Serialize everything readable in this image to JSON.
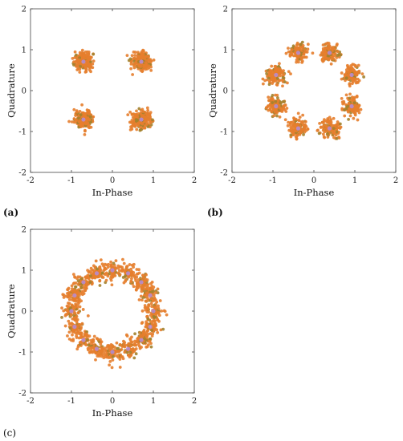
{
  "chart_data": [
    {
      "type": "scatter",
      "panel_label": "(a)",
      "xlabel": "In-Phase",
      "ylabel": "Quadrature",
      "xlim": [
        -2,
        2
      ],
      "ylim": [
        -2,
        2
      ],
      "xticks": [
        -2,
        -1,
        0,
        1,
        2
      ],
      "yticks": [
        -2,
        -1,
        0,
        1,
        2
      ],
      "grid": false,
      "constellation": "QPSK",
      "ideal_points": [
        [
          0.707,
          0.707
        ],
        [
          -0.707,
          0.707
        ],
        [
          -0.707,
          -0.707
        ],
        [
          0.707,
          -0.707
        ]
      ],
      "noise_spread": 0.11,
      "points_per_symbol": 220,
      "colors": {
        "received": "#e57e2e",
        "received_alt": "#a3822e",
        "ideal": "#b48cd8"
      }
    },
    {
      "type": "scatter",
      "panel_label": "(b)",
      "xlabel": "In-Phase",
      "ylabel": "Quadrature",
      "xlim": [
        -2,
        2
      ],
      "ylim": [
        -2,
        2
      ],
      "xticks": [
        -2,
        -1,
        0,
        1,
        2
      ],
      "yticks": [
        -2,
        -1,
        0,
        1,
        2
      ],
      "grid": false,
      "constellation": "8PSK",
      "ideal_points": [
        [
          0.924,
          0.383
        ],
        [
          0.383,
          0.924
        ],
        [
          -0.383,
          0.924
        ],
        [
          -0.924,
          0.383
        ],
        [
          -0.924,
          -0.383
        ],
        [
          -0.383,
          -0.924
        ],
        [
          0.383,
          -0.924
        ],
        [
          0.924,
          -0.383
        ]
      ],
      "noise_spread": 0.11,
      "points_per_symbol": 130,
      "colors": {
        "received": "#e57e2e",
        "received_alt": "#a3822e",
        "ideal": "#b48cd8"
      }
    },
    {
      "type": "scatter",
      "panel_label": "(c)",
      "xlabel": "In-Phase",
      "ylabel": "Quadrature",
      "xlim": [
        -2,
        2
      ],
      "ylim": [
        -2,
        2
      ],
      "xticks": [
        -2,
        -1,
        0,
        1,
        2
      ],
      "yticks": [
        -2,
        -1,
        0,
        1,
        2
      ],
      "grid": false,
      "constellation": "16PSK",
      "ideal_points": [
        [
          1.0,
          0.0
        ],
        [
          0.924,
          0.383
        ],
        [
          0.707,
          0.707
        ],
        [
          0.383,
          0.924
        ],
        [
          0.0,
          1.0
        ],
        [
          -0.383,
          0.924
        ],
        [
          -0.707,
          0.707
        ],
        [
          -0.924,
          0.383
        ],
        [
          -1.0,
          0.0
        ],
        [
          -0.924,
          -0.383
        ],
        [
          -0.707,
          -0.707
        ],
        [
          -0.383,
          -0.924
        ],
        [
          0.0,
          -1.0
        ],
        [
          0.383,
          -0.924
        ],
        [
          0.707,
          -0.707
        ],
        [
          0.924,
          -0.383
        ]
      ],
      "noise_spread": 0.11,
      "points_per_symbol": 70,
      "colors": {
        "received": "#e57e2e",
        "received_alt": "#a3822e",
        "ideal": "#b48cd8"
      }
    }
  ]
}
